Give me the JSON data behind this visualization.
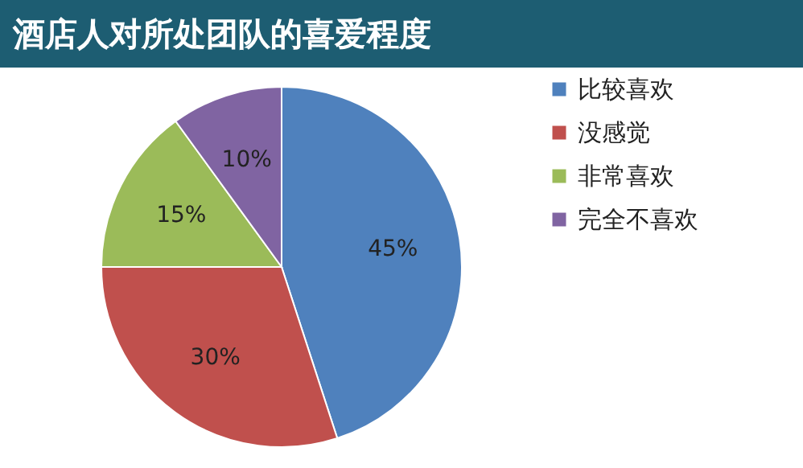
{
  "chart_data": {
    "type": "pie",
    "title": "酒店人对所处团队的喜爱程度",
    "categories": [
      "比较喜欢",
      "没感觉",
      "非常喜欢",
      "完全不喜欢"
    ],
    "values": [
      45,
      30,
      15,
      10
    ],
    "colors": [
      "#4f81bd",
      "#c0504d",
      "#9bbb59",
      "#8064a2"
    ],
    "value_labels": [
      "45%",
      "30%",
      "15%",
      "10%"
    ],
    "legend": "right"
  }
}
